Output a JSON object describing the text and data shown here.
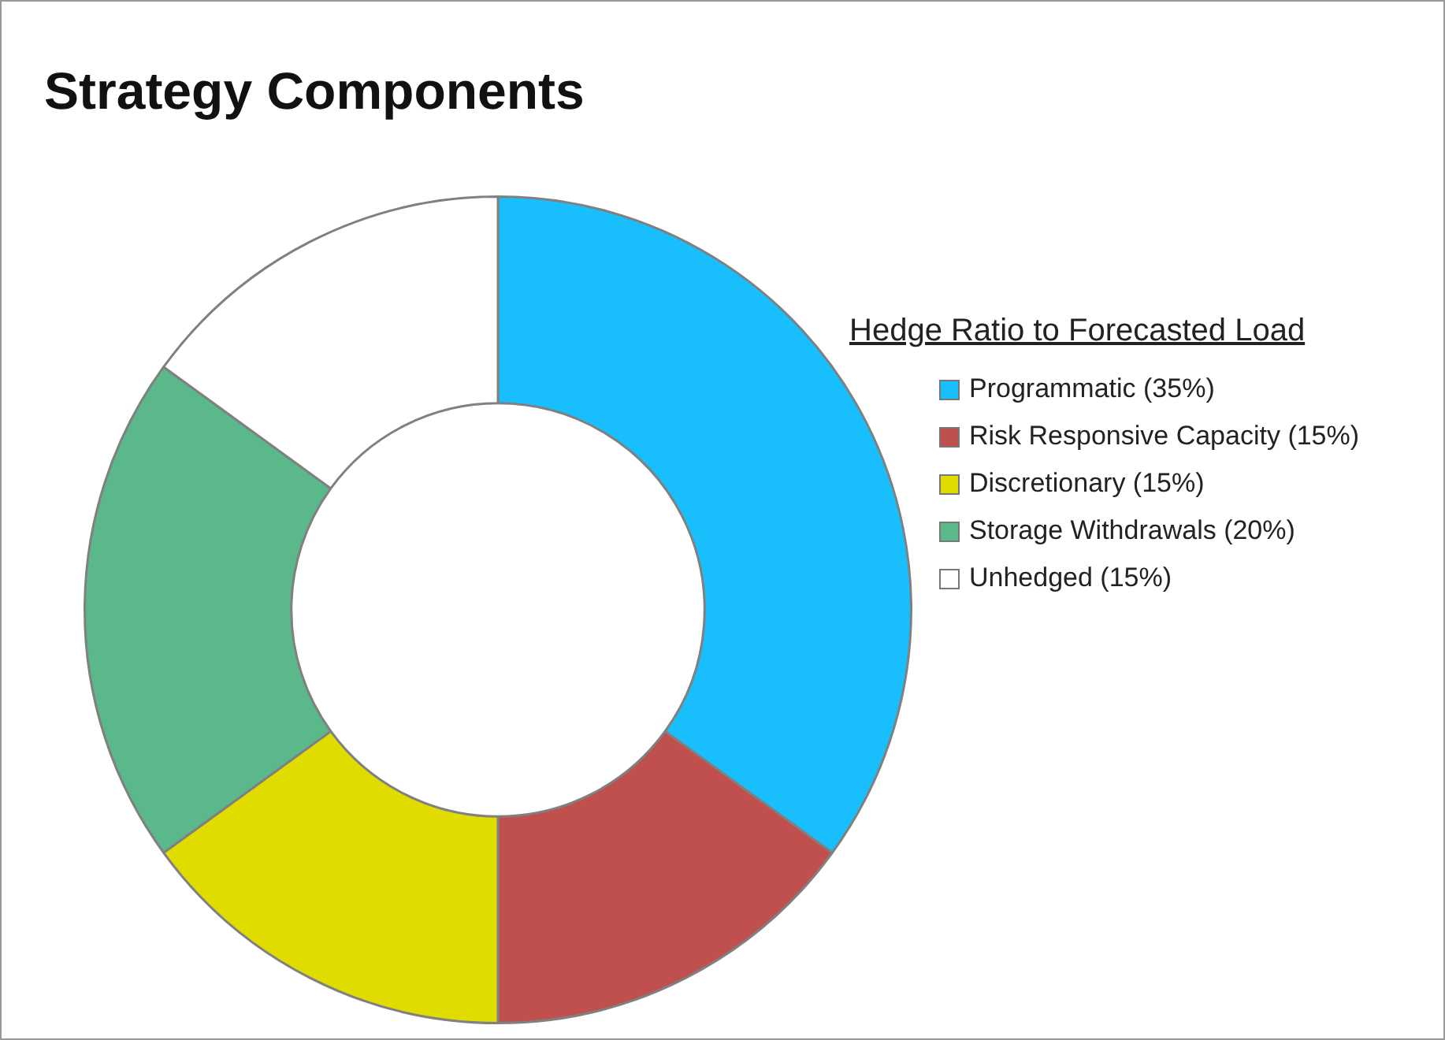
{
  "chart_data": {
    "type": "donut",
    "title": "Strategy Components",
    "legend_title": "Hedge Ratio to Forecasted Load",
    "legend": "right",
    "categories": [
      "Programmatic (35%)",
      "Risk Responsive Capacity (15%)",
      "Discretionary (15%)",
      "Storage Withdrawals (20%)",
      "Unhedged (15%)"
    ],
    "values": [
      35,
      15,
      15,
      20,
      15
    ],
    "colors": [
      "#19bffd",
      "#c0504d",
      "#e0dc00",
      "#5ab88a",
      "#ffffff"
    ]
  }
}
